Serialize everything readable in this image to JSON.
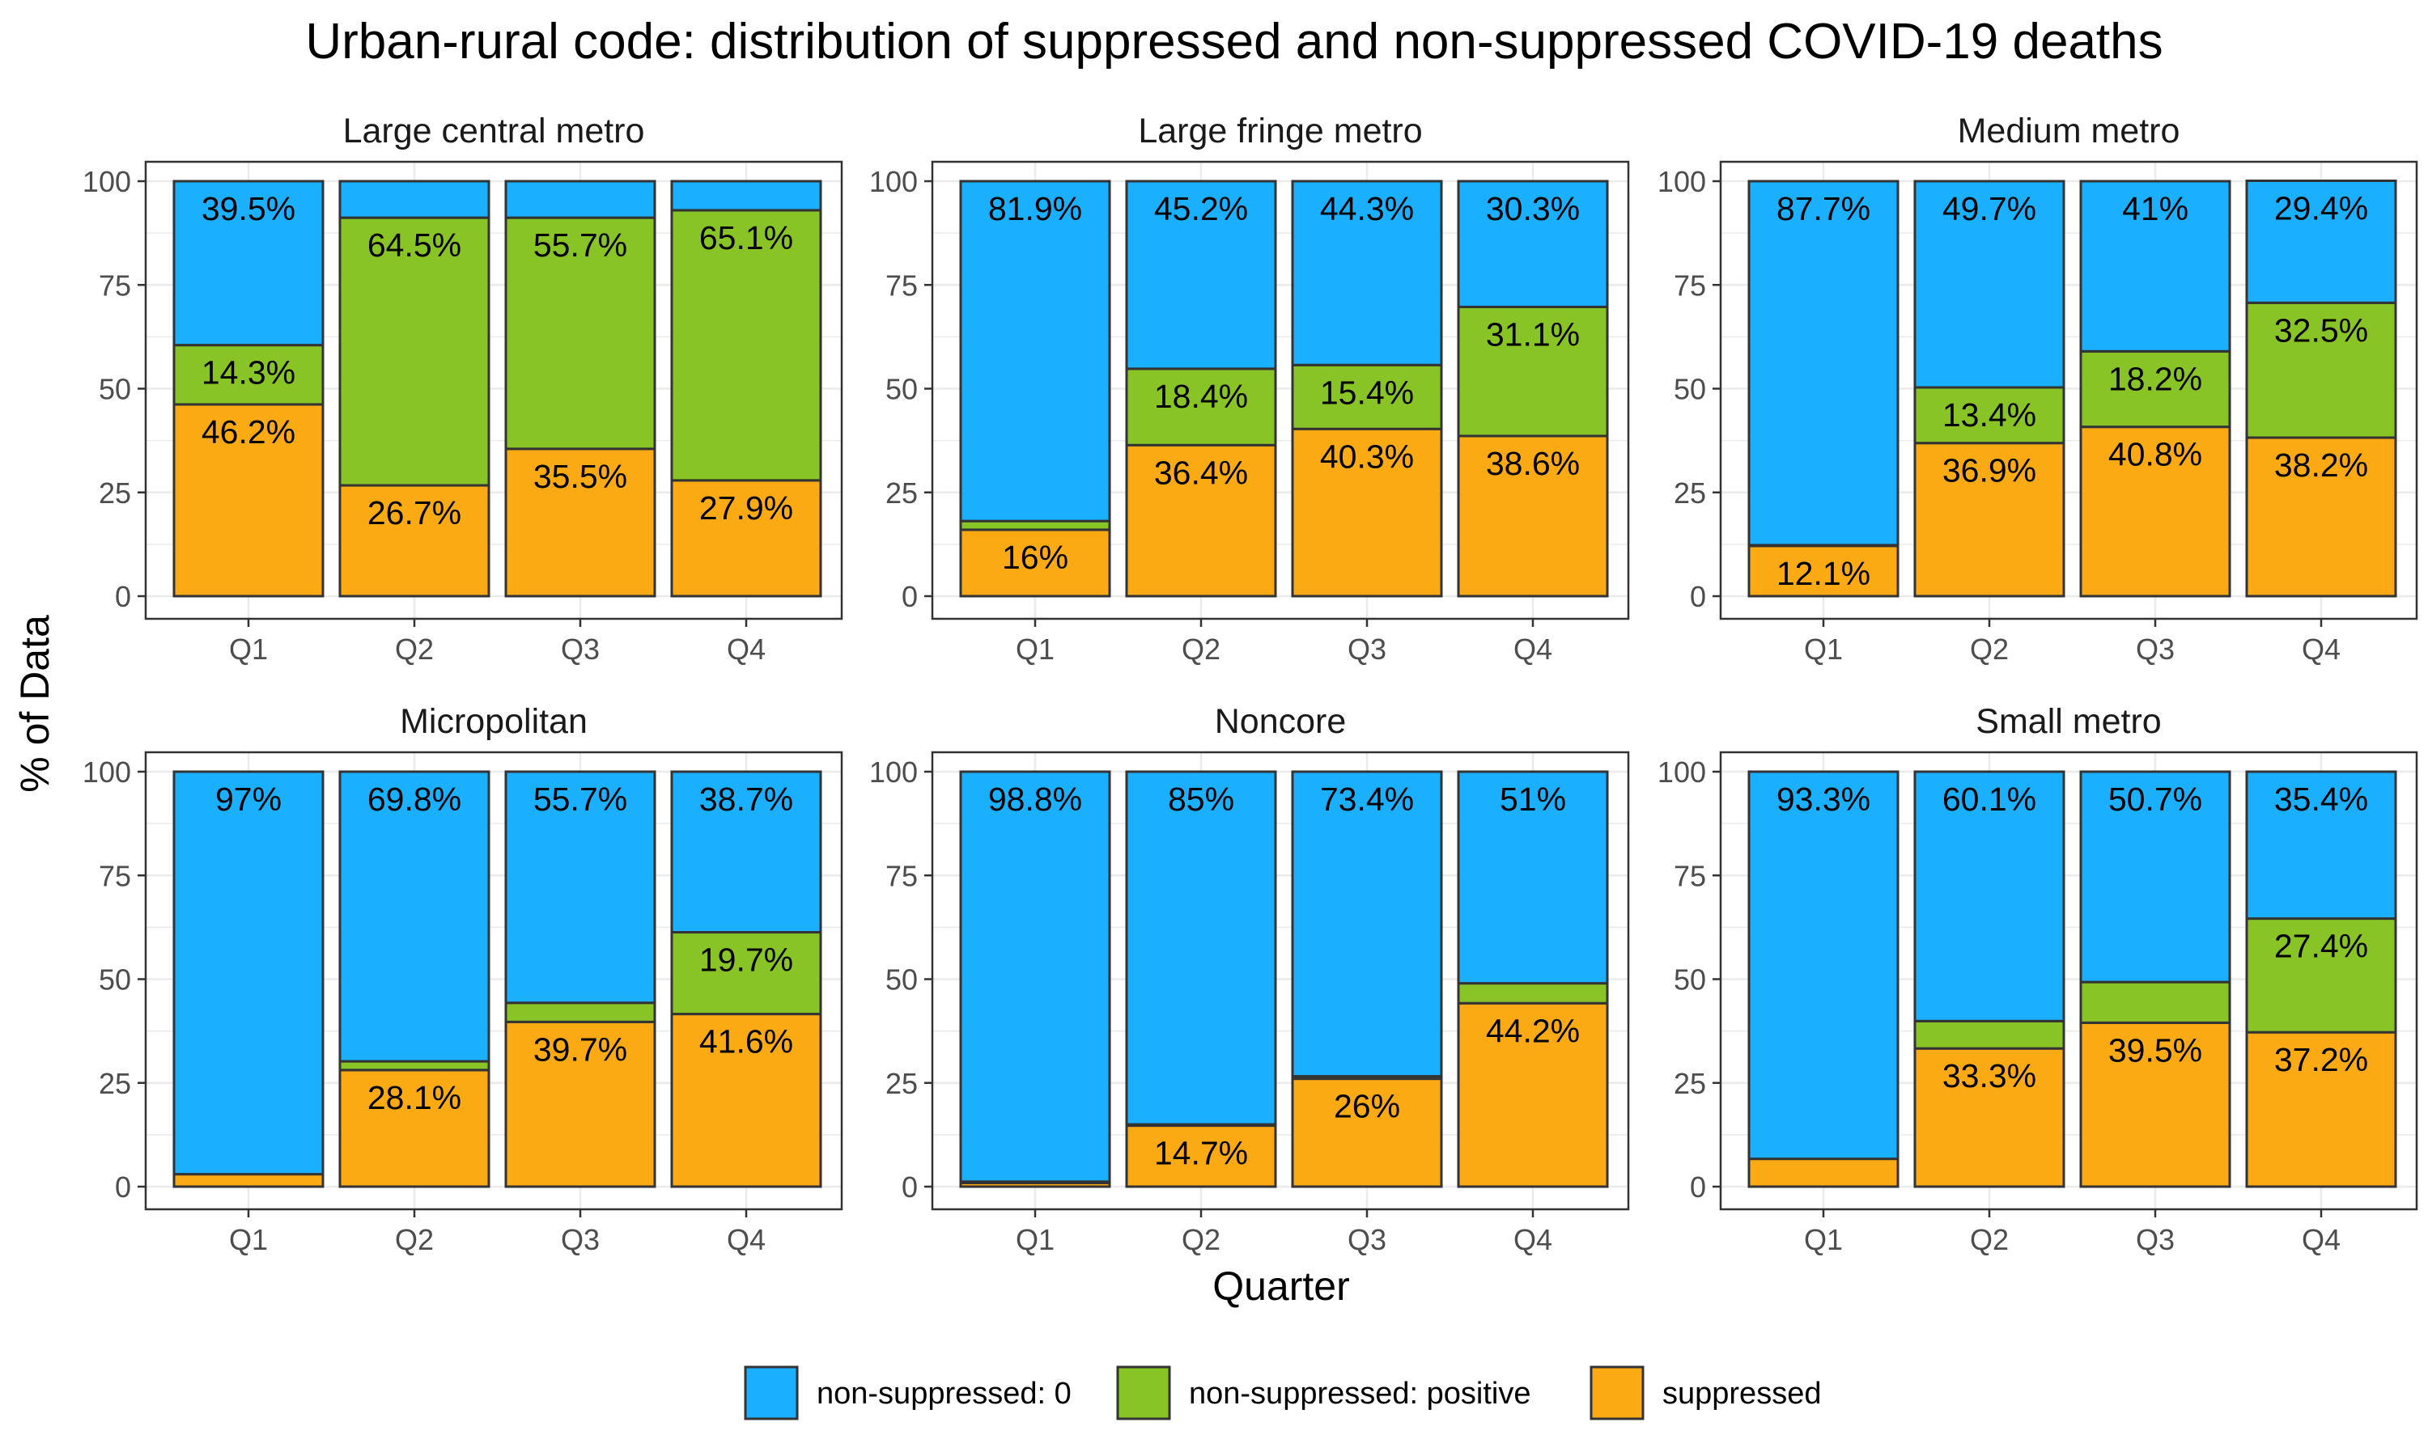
{
  "chart_data": {
    "type": "bar",
    "stacked": true,
    "title": "Urban-rural code: distribution of suppressed and non-suppressed COVID-19 deaths",
    "xlabel": "Quarter",
    "ylabel": "% of Data",
    "ylim": [
      0,
      100
    ],
    "yticks": [
      "0",
      "25",
      "50",
      "75",
      "100"
    ],
    "categories": [
      "Q1",
      "Q2",
      "Q3",
      "Q4"
    ],
    "grid": true,
    "legend_position": "bottom",
    "series_order_bottom_to_top": [
      "suppressed",
      "non-suppressed: positive",
      "non-suppressed: 0"
    ],
    "legend": [
      {
        "name": "non-suppressed: 0",
        "color": "#1AAFFF"
      },
      {
        "name": "non-suppressed: positive",
        "color": "#88C425"
      },
      {
        "name": "suppressed",
        "color": "#FBAA14"
      }
    ],
    "panels": [
      {
        "title": "Large central metro",
        "series": [
          {
            "name": "suppressed",
            "values": [
              46.2,
              26.7,
              35.5,
              27.9
            ],
            "labels": [
              "46.2%",
              "26.7%",
              "35.5%",
              "27.9%"
            ]
          },
          {
            "name": "non-suppressed: positive",
            "values": [
              14.3,
              64.5,
              55.7,
              65.1
            ],
            "labels": [
              "14.3%",
              "64.5%",
              "55.7%",
              "65.1%"
            ]
          },
          {
            "name": "non-suppressed: 0",
            "values": [
              39.5,
              8.8,
              8.8,
              7.0
            ],
            "labels": [
              "39.5%",
              "",
              "",
              ""
            ]
          }
        ]
      },
      {
        "title": "Large fringe metro",
        "series": [
          {
            "name": "suppressed",
            "values": [
              16,
              36.4,
              40.3,
              38.6
            ],
            "labels": [
              "16%",
              "36.4%",
              "40.3%",
              "38.6%"
            ]
          },
          {
            "name": "non-suppressed: positive",
            "values": [
              2.1,
              18.4,
              15.4,
              31.1
            ],
            "labels": [
              "",
              "18.4%",
              "15.4%",
              "31.1%"
            ]
          },
          {
            "name": "non-suppressed: 0",
            "values": [
              81.9,
              45.2,
              44.3,
              30.3
            ],
            "labels": [
              "81.9%",
              "45.2%",
              "44.3%",
              "30.3%"
            ]
          }
        ]
      },
      {
        "title": "Medium metro",
        "series": [
          {
            "name": "suppressed",
            "values": [
              12.1,
              36.9,
              40.8,
              38.2
            ],
            "labels": [
              "12.1%",
              "36.9%",
              "40.8%",
              "38.2%"
            ]
          },
          {
            "name": "non-suppressed: positive",
            "values": [
              0.2,
              13.4,
              18.2,
              32.5
            ],
            "labels": [
              "",
              "13.4%",
              "18.2%",
              "32.5%"
            ]
          },
          {
            "name": "non-suppressed: 0",
            "values": [
              87.7,
              49.7,
              41,
              29.4
            ],
            "labels": [
              "87.7%",
              "49.7%",
              "41%",
              "29.4%"
            ]
          }
        ]
      },
      {
        "title": "Micropolitan",
        "series": [
          {
            "name": "suppressed",
            "values": [
              3.0,
              28.1,
              39.7,
              41.6
            ],
            "labels": [
              "",
              "28.1%",
              "39.7%",
              "41.6%"
            ]
          },
          {
            "name": "non-suppressed: positive",
            "values": [
              0,
              2.1,
              4.6,
              19.7
            ],
            "labels": [
              "",
              "",
              "",
              "19.7%"
            ]
          },
          {
            "name": "non-suppressed: 0",
            "values": [
              97,
              69.8,
              55.7,
              38.7
            ],
            "labels": [
              "97%",
              "69.8%",
              "55.7%",
              "38.7%"
            ]
          }
        ]
      },
      {
        "title": "Noncore",
        "series": [
          {
            "name": "suppressed",
            "values": [
              0.9,
              14.7,
              26,
              44.2
            ],
            "labels": [
              "",
              "14.7%",
              "26%",
              "44.2%"
            ]
          },
          {
            "name": "non-suppressed: positive",
            "values": [
              0.3,
              0.3,
              0.6,
              4.8
            ],
            "labels": [
              "",
              "",
              "",
              ""
            ]
          },
          {
            "name": "non-suppressed: 0",
            "values": [
              98.8,
              85,
              73.4,
              51
            ],
            "labels": [
              "98.8%",
              "85%",
              "73.4%",
              "51%"
            ]
          }
        ]
      },
      {
        "title": "Small metro",
        "series": [
          {
            "name": "suppressed",
            "values": [
              6.7,
              33.3,
              39.5,
              37.2
            ],
            "labels": [
              "",
              "33.3%",
              "39.5%",
              "37.2%"
            ]
          },
          {
            "name": "non-suppressed: positive",
            "values": [
              0,
              6.6,
              9.8,
              27.4
            ],
            "labels": [
              "",
              "",
              "",
              "27.4%"
            ]
          },
          {
            "name": "non-suppressed: 0",
            "values": [
              93.3,
              60.1,
              50.7,
              35.4
            ],
            "labels": [
              "93.3%",
              "60.1%",
              "50.7%",
              "35.4%"
            ]
          }
        ]
      }
    ]
  }
}
